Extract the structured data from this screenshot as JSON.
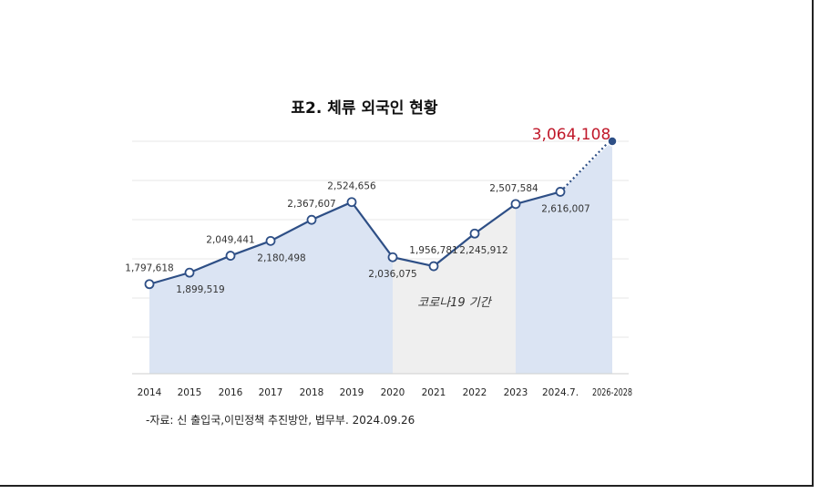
{
  "chart_data": {
    "type": "line",
    "title": "표2. 체류 외국인 현황",
    "categories": [
      "2014",
      "2015",
      "2016",
      "2017",
      "2018",
      "2019",
      "2020",
      "2021",
      "2022",
      "2023",
      "2024.7.",
      "2026-2028"
    ],
    "values": [
      1797618,
      1899519,
      2049441,
      2180498,
      2367607,
      2524656,
      2036075,
      1956781,
      2245912,
      2507584,
      2616007,
      3064108
    ],
    "data_labels": [
      "1,797,618",
      "1,899,519",
      "2,049,441",
      "2,180,498",
      "2,367,607",
      "2,524,656",
      "2,036,075",
      "1,956,781",
      "2,245,912",
      "2,507,584",
      "2,616,007",
      "3,064,108"
    ],
    "projection_from_index": 10,
    "ylim": [
      1000000,
      3100000
    ],
    "grid": true,
    "annotation": "코로나19 기간",
    "covid_range": [
      "2020",
      "2023"
    ],
    "colors": {
      "line": "#2e4f86",
      "fill": "#dbe4f3",
      "covid_fill": "#efefef",
      "highlight": "#c0182a"
    },
    "source": "-자료: 신 출입국,이민정책 추진방안, 법무부. 2024.09.26"
  }
}
